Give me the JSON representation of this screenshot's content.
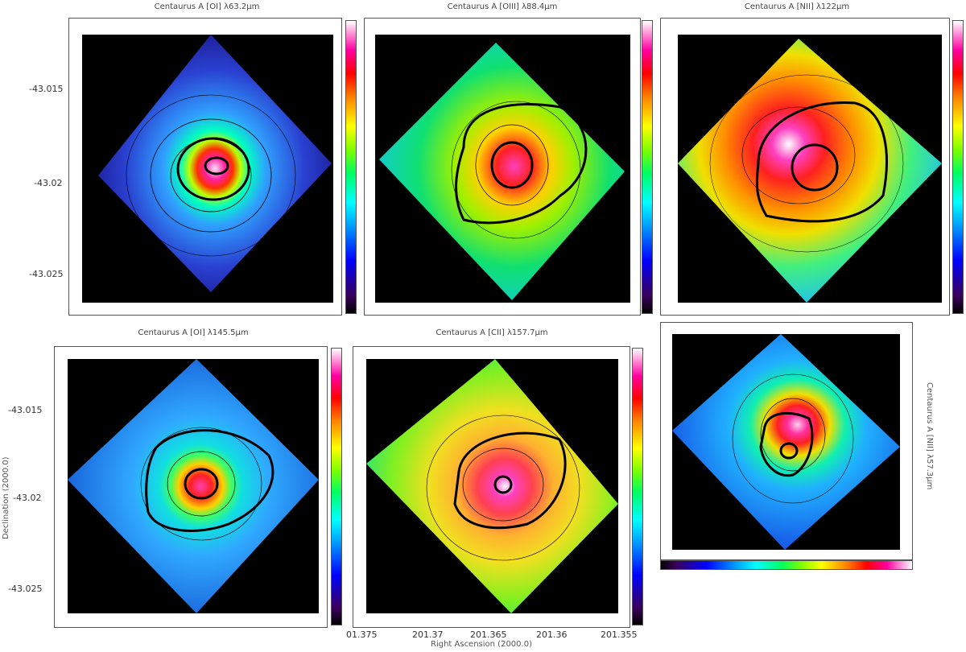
{
  "panels": [
    {
      "title": "Centaurus A [OI] λ63.2μm",
      "base": "#2c3fcf",
      "mid": "#3aa0ff",
      "hot": "#ff2a8a",
      "core": "#ffd0f0"
    },
    {
      "title": "Centaurus A [OIII] λ88.4μm",
      "base": "#16e0c0",
      "mid": "#c8f000",
      "hot": "#ff2020",
      "core": "#ff40c0"
    },
    {
      "title": "Centaurus A [NII] λ122μm",
      "base": "#20d0f0",
      "mid": "#f0e000",
      "hot": "#ff2040",
      "core": "#ffffff"
    },
    {
      "title": "Centaurus A [OI] λ145.5μm",
      "base": "#1880e8",
      "mid": "#40d0ff",
      "hot": "#ff3030",
      "core": "#ff40b0"
    },
    {
      "title": "Centaurus A [CII] λ157.7μm",
      "base": "#80f020",
      "mid": "#ffd040",
      "hot": "#ff30a0",
      "core": "#ffffff"
    },
    {
      "title": "Centaurus A [NII] λ57.3μm",
      "base": "#1868f0",
      "mid": "#10f0c0",
      "hot": "#ff2020",
      "core": "#ffd0f0"
    }
  ],
  "axes": {
    "dec_ticks": [
      "-43.015",
      "-43.02",
      "-43.025"
    ],
    "ra_ticks": [
      "01.375",
      "201.37",
      "201.365",
      "201.36",
      "201.355"
    ],
    "xlabel": "Right Ascension (2000.0)",
    "ylabel": "Declination (2000.0)"
  }
}
